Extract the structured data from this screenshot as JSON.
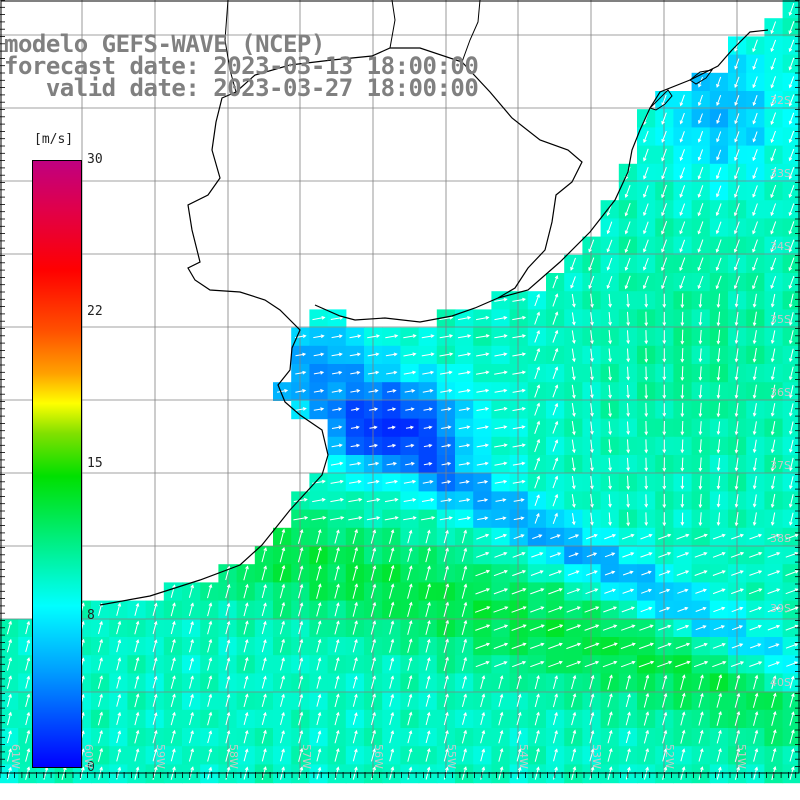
{
  "title": {
    "line1": "modelo GEFS-WAVE (NCEP)",
    "line2": "forecast date: 2023-03-13 18:00:00",
    "line3": "   valid date: 2023-03-27 18:00:00"
  },
  "colorbar": {
    "unit": "[m/s]",
    "ticks": [
      "30",
      "22",
      "15",
      "8",
      "0"
    ],
    "tick_values": [
      30,
      22,
      15,
      8,
      0
    ],
    "min": 0,
    "max": 30,
    "colors": [
      "#0000ff",
      "#00a0ff",
      "#00ffff",
      "#00e000",
      "#ffff00",
      "#ff0000",
      "#c00080"
    ]
  },
  "axes": {
    "lat_labels": [
      "32S",
      "33S",
      "34S",
      "35S",
      "36S",
      "37S",
      "38S",
      "39S",
      "40S"
    ],
    "lon_labels": [
      "61W",
      "60W",
      "59W",
      "58W",
      "57W",
      "56W",
      "55W",
      "54W",
      "53W",
      "52W",
      "51W"
    ]
  },
  "colors": {
    "coast": "#000000",
    "grid": "#808080",
    "arrow": "#ffffff",
    "land": "#ffffff"
  }
}
